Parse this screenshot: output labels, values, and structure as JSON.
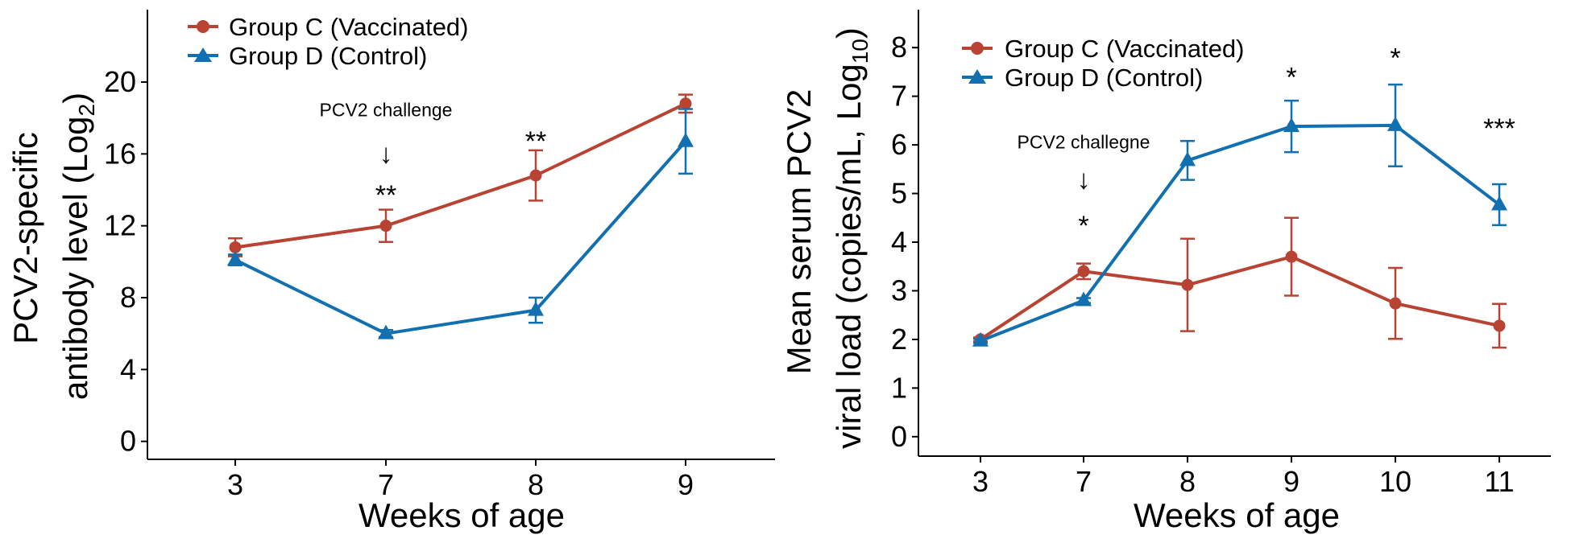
{
  "colors": {
    "group_c": "#B84332",
    "group_d": "#1370B0",
    "axis": "#000000"
  },
  "chart_data": [
    {
      "type": "line",
      "xlabel": "Weeks of age",
      "ylabel_line1": "PCV2-specific",
      "ylabel_line2_prefix": "antibody level (Log",
      "ylabel_line2_sub": "2",
      "ylabel_line2_suffix": ")",
      "categories": [
        "3",
        "7",
        "8",
        "9"
      ],
      "yticks": [
        "0",
        "4",
        "8",
        "12",
        "16",
        "20"
      ],
      "ylim": [
        -1,
        23
      ],
      "grid": false,
      "legend_position": "top-left",
      "series": [
        {
          "name": "Group C (Vaccinated)",
          "marker": "circle",
          "values": [
            10.8,
            12.0,
            14.8,
            18.8
          ],
          "error": [
            0.5,
            0.9,
            1.4,
            0.5
          ]
        },
        {
          "name": "Group D (Control)",
          "marker": "triangle",
          "values": [
            10.1,
            6.0,
            7.3,
            16.7
          ],
          "error": [
            0.3,
            0.2,
            0.7,
            1.8
          ]
        }
      ],
      "annotations": [
        {
          "text": "PCV2 challenge",
          "category": "7",
          "y": 18.1
        },
        {
          "text": "↓",
          "category": "7",
          "y": 15.5
        }
      ],
      "significance": [
        {
          "text": "**",
          "category": "7",
          "y": 13.2
        },
        {
          "text": "**",
          "category": "8",
          "y": 16.2
        }
      ]
    },
    {
      "type": "line",
      "xlabel": "Weeks of age",
      "ylabel_line1": "Mean serum PCV2",
      "ylabel_line2_prefix": "viral load (copies/mL, Log",
      "ylabel_line2_sub": "10",
      "ylabel_line2_suffix": ")",
      "categories": [
        "3",
        "7",
        "8",
        "9",
        "10",
        "11"
      ],
      "yticks": [
        "0",
        "1",
        "2",
        "3",
        "4",
        "5",
        "6",
        "7",
        "8"
      ],
      "ylim": [
        -0.4,
        8.4
      ],
      "grid": false,
      "legend_position": "top-left",
      "series": [
        {
          "name": "Group C (Vaccinated)",
          "marker": "circle",
          "values": [
            2.0,
            3.4,
            3.12,
            3.7,
            2.74,
            2.28
          ],
          "error": [
            0.04,
            0.16,
            0.95,
            0.8,
            0.73,
            0.45
          ]
        },
        {
          "name": "Group D (Control)",
          "marker": "triangle",
          "values": [
            1.97,
            2.8,
            5.68,
            6.38,
            6.4,
            4.77
          ],
          "error": [
            0.04,
            0.05,
            0.4,
            0.53,
            0.84,
            0.42
          ]
        }
      ],
      "annotations": [
        {
          "text": "PCV2 challegne",
          "category": "7",
          "y": 5.93
        },
        {
          "text": "↓",
          "category": "7",
          "y": 5.1
        }
      ],
      "significance": [
        {
          "text": "*",
          "category": "7",
          "y": 4.15
        },
        {
          "text": "*",
          "category": "9",
          "y": 7.2
        },
        {
          "text": "*",
          "category": "10",
          "y": 7.6
        },
        {
          "text": "***",
          "category": "11",
          "y": 6.15
        }
      ]
    }
  ]
}
